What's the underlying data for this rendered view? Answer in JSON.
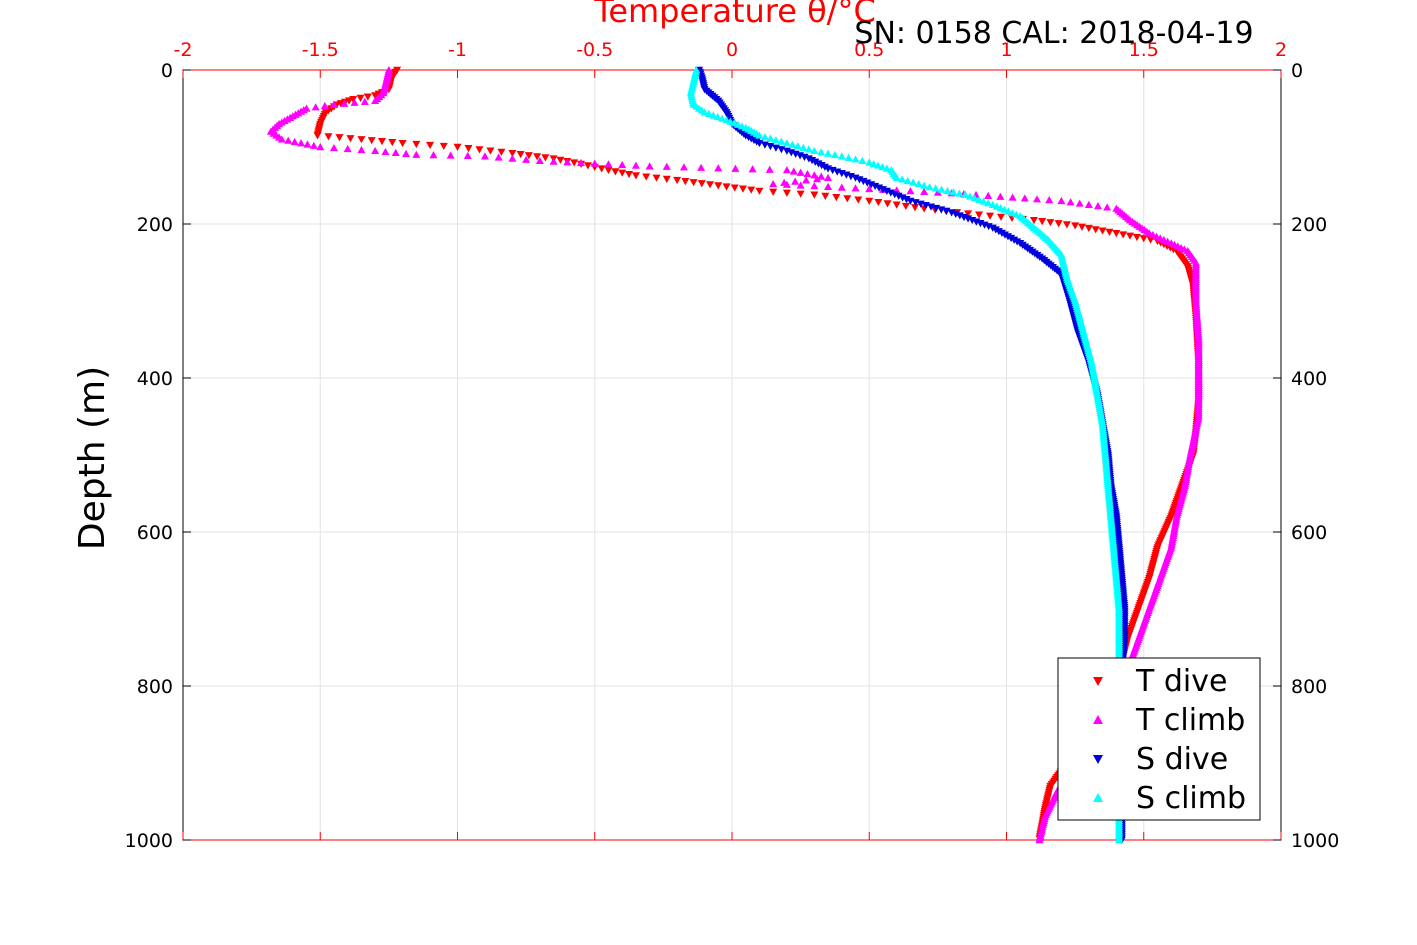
{
  "chart_data": {
    "type": "scatter",
    "title": "Temperature θ/°C",
    "annotation": "SN: 0158  CAL: 2018-04-19",
    "xlabel": "Temperature θ/°C",
    "ylabel": "Depth (m)",
    "xlim": [
      -2,
      2
    ],
    "ylim": [
      0,
      1000
    ],
    "y_reversed": true,
    "x_axis_position": "top",
    "grid": true,
    "legend_position": "bottom-right",
    "x_ticks": [
      "-2",
      "-1.5",
      "-1",
      "-0.5",
      "0",
      "0.5",
      "1",
      "1.5",
      "2"
    ],
    "y_ticks_left": [
      "0",
      "200",
      "400",
      "600",
      "800",
      "1000"
    ],
    "y_ticks_right": [
      "0",
      "200",
      "400",
      "600",
      "800",
      "1000"
    ],
    "series": [
      {
        "name": "T dive",
        "color": "#ff0000",
        "marker": "triangle-down",
        "points": [
          [
            -1.22,
            0
          ],
          [
            -1.24,
            10
          ],
          [
            -1.25,
            25
          ],
          [
            -1.3,
            33
          ],
          [
            -1.38,
            38
          ],
          [
            -1.44,
            45
          ],
          [
            -1.48,
            55
          ],
          [
            -1.5,
            70
          ],
          [
            -1.51,
            85
          ],
          [
            -1.35,
            90
          ],
          [
            -1.2,
            95
          ],
          [
            -1.0,
            100
          ],
          [
            -0.8,
            108
          ],
          [
            -0.65,
            115
          ],
          [
            -0.55,
            122
          ],
          [
            -0.45,
            130
          ],
          [
            -0.35,
            137
          ],
          [
            -0.2,
            143
          ],
          [
            -0.05,
            150
          ],
          [
            0.1,
            157
          ],
          [
            0.3,
            162
          ],
          [
            0.5,
            170
          ],
          [
            0.7,
            180
          ],
          [
            0.9,
            188
          ],
          [
            1.1,
            195
          ],
          [
            1.25,
            202
          ],
          [
            1.4,
            212
          ],
          [
            1.55,
            222
          ],
          [
            1.62,
            235
          ],
          [
            1.66,
            255
          ],
          [
            1.68,
            280
          ],
          [
            1.69,
            320
          ],
          [
            1.7,
            380
          ],
          [
            1.7,
            430
          ],
          [
            1.69,
            470
          ],
          [
            1.68,
            500
          ],
          [
            1.64,
            540
          ],
          [
            1.6,
            580
          ],
          [
            1.55,
            620
          ],
          [
            1.52,
            660
          ],
          [
            1.48,
            700
          ],
          [
            1.44,
            740
          ],
          [
            1.42,
            770
          ],
          [
            1.38,
            800
          ],
          [
            1.3,
            850
          ],
          [
            1.22,
            900
          ],
          [
            1.16,
            930
          ],
          [
            1.14,
            960
          ],
          [
            1.13,
            980
          ],
          [
            1.12,
            998
          ]
        ]
      },
      {
        "name": "T climb",
        "color": "#ff00ff",
        "marker": "triangle-up",
        "points": [
          [
            -1.25,
            0
          ],
          [
            -1.26,
            15
          ],
          [
            -1.27,
            30
          ],
          [
            -1.3,
            40
          ],
          [
            -1.45,
            45
          ],
          [
            -1.55,
            50
          ],
          [
            -1.6,
            60
          ],
          [
            -1.65,
            70
          ],
          [
            -1.68,
            80
          ],
          [
            -1.64,
            90
          ],
          [
            -1.5,
            100
          ],
          [
            -1.3,
            105
          ],
          [
            -1.15,
            110
          ],
          [
            -0.9,
            112
          ],
          [
            -0.7,
            118
          ],
          [
            -0.3,
            125
          ],
          [
            0.2,
            130
          ],
          [
            0.35,
            140
          ],
          [
            0.15,
            148
          ],
          [
            0.8,
            160
          ],
          [
            1.2,
            170
          ],
          [
            1.4,
            180
          ],
          [
            1.45,
            195
          ],
          [
            1.52,
            212
          ],
          [
            1.6,
            225
          ],
          [
            1.66,
            235
          ],
          [
            1.69,
            250
          ],
          [
            1.69,
            300
          ],
          [
            1.7,
            350
          ],
          [
            1.7,
            400
          ],
          [
            1.7,
            450
          ],
          [
            1.67,
            500
          ],
          [
            1.65,
            540
          ],
          [
            1.62,
            580
          ],
          [
            1.6,
            620
          ],
          [
            1.56,
            660
          ],
          [
            1.52,
            700
          ],
          [
            1.48,
            740
          ],
          [
            1.44,
            780
          ],
          [
            1.38,
            820
          ],
          [
            1.3,
            860
          ],
          [
            1.24,
            900
          ],
          [
            1.18,
            940
          ],
          [
            1.14,
            970
          ],
          [
            1.12,
            1000
          ]
        ]
      },
      {
        "name": "S dive",
        "color": "#0000dd",
        "marker": "triangle-down",
        "points": [
          [
            -0.12,
            0
          ],
          [
            -0.11,
            10
          ],
          [
            -0.1,
            25
          ],
          [
            -0.05,
            40
          ],
          [
            -0.02,
            55
          ],
          [
            0.0,
            70
          ],
          [
            0.05,
            85
          ],
          [
            0.1,
            95
          ],
          [
            0.2,
            105
          ],
          [
            0.28,
            115
          ],
          [
            0.35,
            128
          ],
          [
            0.45,
            140
          ],
          [
            0.55,
            155
          ],
          [
            0.65,
            170
          ],
          [
            0.8,
            185
          ],
          [
            0.95,
            205
          ],
          [
            1.05,
            225
          ],
          [
            1.13,
            245
          ],
          [
            1.2,
            265
          ],
          [
            1.23,
            300
          ],
          [
            1.26,
            340
          ],
          [
            1.3,
            380
          ],
          [
            1.33,
            420
          ],
          [
            1.35,
            460
          ],
          [
            1.37,
            500
          ],
          [
            1.38,
            540
          ],
          [
            1.4,
            580
          ],
          [
            1.41,
            620
          ],
          [
            1.42,
            660
          ],
          [
            1.43,
            700
          ],
          [
            1.43,
            740
          ],
          [
            1.42,
            780
          ],
          [
            1.42,
            820
          ],
          [
            1.42,
            860
          ],
          [
            1.42,
            900
          ],
          [
            1.42,
            940
          ],
          [
            1.42,
            980
          ],
          [
            1.42,
            1000
          ]
        ]
      },
      {
        "name": "S climb",
        "color": "#00ffff",
        "marker": "triangle-up",
        "points": [
          [
            -0.13,
            0
          ],
          [
            -0.14,
            15
          ],
          [
            -0.15,
            30
          ],
          [
            -0.14,
            45
          ],
          [
            -0.1,
            55
          ],
          [
            -0.02,
            65
          ],
          [
            0.05,
            75
          ],
          [
            0.1,
            85
          ],
          [
            0.2,
            95
          ],
          [
            0.3,
            105
          ],
          [
            0.4,
            112
          ],
          [
            0.5,
            120
          ],
          [
            0.58,
            130
          ],
          [
            0.6,
            140
          ],
          [
            0.72,
            152
          ],
          [
            0.85,
            162
          ],
          [
            0.95,
            175
          ],
          [
            1.05,
            190
          ],
          [
            1.1,
            205
          ],
          [
            1.15,
            220
          ],
          [
            1.2,
            240
          ],
          [
            1.22,
            270
          ],
          [
            1.25,
            300
          ],
          [
            1.28,
            340
          ],
          [
            1.31,
            380
          ],
          [
            1.33,
            420
          ],
          [
            1.35,
            460
          ],
          [
            1.36,
            500
          ],
          [
            1.37,
            540
          ],
          [
            1.38,
            580
          ],
          [
            1.39,
            620
          ],
          [
            1.4,
            660
          ],
          [
            1.41,
            700
          ],
          [
            1.41,
            740
          ],
          [
            1.41,
            780
          ],
          [
            1.41,
            820
          ],
          [
            1.41,
            860
          ],
          [
            1.41,
            900
          ],
          [
            1.41,
            940
          ],
          [
            1.41,
            980
          ],
          [
            1.41,
            1000
          ]
        ]
      }
    ]
  }
}
